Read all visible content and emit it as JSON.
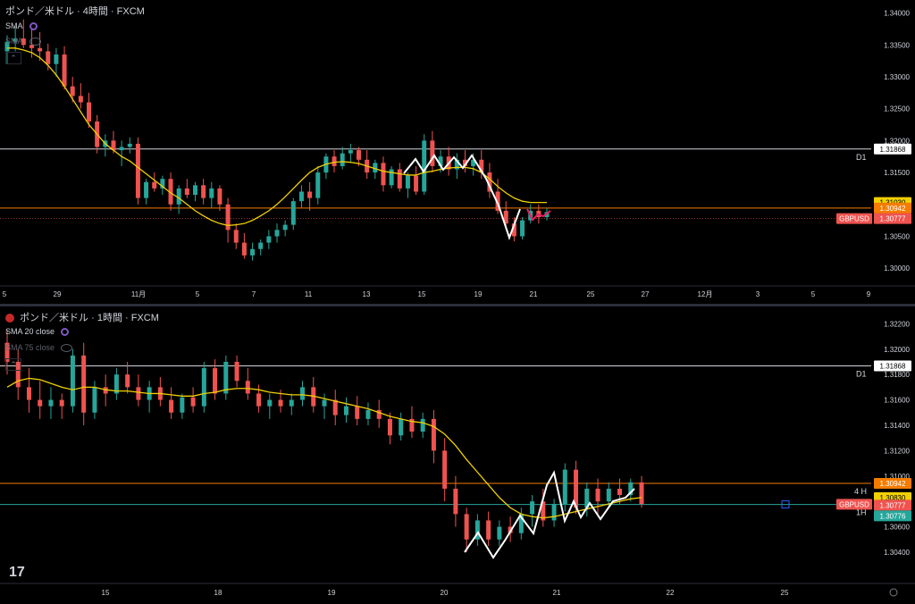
{
  "colors": {
    "up": "#26a69a",
    "down": "#ef5350",
    "sma": "#f0d000",
    "zigzag_white": "#ffffff",
    "zigzag_pink": "#e91e63",
    "level_line": "#d1d4dc",
    "orange_line": "#f57c00",
    "green_line": "#26a69a",
    "label_yellow": "#f0d000",
    "label_orange": "#f57c00",
    "label_red": "#ef5350",
    "label_green": "#26a69a"
  },
  "top": {
    "title": "ポンド／米ドル · 4時間 · FXCM",
    "sma_label": "SMA",
    "sma2_label": "SMA",
    "collapse_icon": "chevron-up-icon",
    "y_ticks": [
      "1.34000",
      "1.33500",
      "1.33000",
      "1.32500",
      "1.32000",
      "1.31500",
      "1.31000",
      "1.30500",
      "1.30000"
    ],
    "x_ticks": [
      "5",
      "29",
      "11月",
      "5",
      "7",
      "11",
      "13",
      "15",
      "19",
      "21",
      "25",
      "27",
      "12月",
      "3",
      "5",
      "9"
    ],
    "level_tag": "D1",
    "labels": {
      "level": "1.31868",
      "sma": "1.31030",
      "orange": "1.30942",
      "symbol": "GBPUSD",
      "price": "1.30777"
    }
  },
  "bottom": {
    "title": "ポンド／米ドル · 1時間 · FXCM",
    "sma_label": "SMA 20 close",
    "sma2_label": "SMA 75 close",
    "y_ticks": [
      "1.32200",
      "1.32000",
      "1.31800",
      "1.31600",
      "1.31400",
      "1.31200",
      "1.31000",
      "1.30800",
      "1.30600",
      "1.30400"
    ],
    "x_ticks": [
      "15",
      "18",
      "19",
      "20",
      "21",
      "22",
      "25"
    ],
    "level_tag": "D1",
    "h4_tag": "4 H",
    "h1_tag": "1H",
    "labels": {
      "level": "1.31868",
      "orange": "1.30942",
      "sma": "1.30830",
      "symbol": "GBPUSD",
      "price": "1.30777",
      "green": "1.30776"
    }
  },
  "logo": "17",
  "chart_data": [
    {
      "type": "candlestick",
      "title": "ポンド／米ドル · 4時間 · FXCM",
      "ylim": [
        1.2975,
        1.3412
      ],
      "x_tick_labels": [
        "5",
        "29",
        "11月",
        "5",
        "7",
        "11",
        "13",
        "15",
        "19",
        "21",
        "25",
        "27",
        "12月",
        "3",
        "5",
        "9"
      ],
      "candles": [
        [
          1.334,
          1.3365,
          1.332,
          1.3355
        ],
        [
          1.3355,
          1.338,
          1.334,
          1.336
        ],
        [
          1.336,
          1.339,
          1.3345,
          1.335
        ],
        [
          1.335,
          1.3375,
          1.333,
          1.3345
        ],
        [
          1.3345,
          1.337,
          1.3325,
          1.334
        ],
        [
          1.334,
          1.3352,
          1.331,
          1.332
        ],
        [
          1.332,
          1.3345,
          1.33,
          1.3335
        ],
        [
          1.3335,
          1.3348,
          1.328,
          1.3285
        ],
        [
          1.3285,
          1.33,
          1.326,
          1.327
        ],
        [
          1.327,
          1.329,
          1.325,
          1.326
        ],
        [
          1.326,
          1.3275,
          1.322,
          1.323
        ],
        [
          1.323,
          1.324,
          1.318,
          1.319
        ],
        [
          1.319,
          1.321,
          1.3175,
          1.32
        ],
        [
          1.32,
          1.3215,
          1.318,
          1.3185
        ],
        [
          1.3185,
          1.32,
          1.316,
          1.319
        ],
        [
          1.319,
          1.3205,
          1.318,
          1.3195
        ],
        [
          1.3195,
          1.3205,
          1.31,
          1.311
        ],
        [
          1.311,
          1.314,
          1.31,
          1.3135
        ],
        [
          1.3135,
          1.315,
          1.312,
          1.3125
        ],
        [
          1.3125,
          1.3145,
          1.3115,
          1.314
        ],
        [
          1.314,
          1.315,
          1.309,
          1.31
        ],
        [
          1.31,
          1.313,
          1.3085,
          1.3125
        ],
        [
          1.3125,
          1.314,
          1.311,
          1.3115
        ],
        [
          1.3115,
          1.3135,
          1.3105,
          1.313
        ],
        [
          1.313,
          1.314,
          1.31,
          1.311
        ],
        [
          1.311,
          1.3135,
          1.3095,
          1.3125
        ],
        [
          1.3125,
          1.313,
          1.309,
          1.31
        ],
        [
          1.31,
          1.311,
          1.304,
          1.306
        ],
        [
          1.306,
          1.307,
          1.303,
          1.304
        ],
        [
          1.304,
          1.3055,
          1.3015,
          1.302
        ],
        [
          1.302,
          1.304,
          1.3012,
          1.303
        ],
        [
          1.303,
          1.3045,
          1.302,
          1.304
        ],
        [
          1.304,
          1.306,
          1.303,
          1.305
        ],
        [
          1.305,
          1.307,
          1.304,
          1.306
        ],
        [
          1.306,
          1.3075,
          1.305,
          1.3068
        ],
        [
          1.3068,
          1.311,
          1.306,
          1.3105
        ],
        [
          1.3105,
          1.313,
          1.3095,
          1.312
        ],
        [
          1.312,
          1.3135,
          1.309,
          1.311
        ],
        [
          1.311,
          1.316,
          1.31,
          1.315
        ],
        [
          1.315,
          1.318,
          1.314,
          1.3175
        ],
        [
          1.3175,
          1.3185,
          1.315,
          1.316
        ],
        [
          1.316,
          1.319,
          1.3155,
          1.318
        ],
        [
          1.318,
          1.3195,
          1.3165,
          1.3185
        ],
        [
          1.3185,
          1.319,
          1.316,
          1.317
        ],
        [
          1.317,
          1.3185,
          1.314,
          1.315
        ],
        [
          1.315,
          1.317,
          1.314,
          1.3165
        ],
        [
          1.3165,
          1.3175,
          1.312,
          1.313
        ],
        [
          1.313,
          1.316,
          1.3125,
          1.3155
        ],
        [
          1.3155,
          1.3165,
          1.312,
          1.3125
        ],
        [
          1.3125,
          1.315,
          1.311,
          1.3145
        ],
        [
          1.3145,
          1.316,
          1.3115,
          1.312
        ],
        [
          1.312,
          1.321,
          1.3115,
          1.32
        ],
        [
          1.32,
          1.3215,
          1.315,
          1.316
        ],
        [
          1.316,
          1.3185,
          1.315,
          1.3175
        ],
        [
          1.3175,
          1.319,
          1.3145,
          1.3155
        ],
        [
          1.3155,
          1.318,
          1.314,
          1.317
        ],
        [
          1.317,
          1.3185,
          1.315,
          1.316
        ],
        [
          1.316,
          1.318,
          1.3145,
          1.317
        ],
        [
          1.317,
          1.3185,
          1.314,
          1.315
        ],
        [
          1.315,
          1.3165,
          1.311,
          1.312
        ],
        [
          1.312,
          1.314,
          1.3085,
          1.309
        ],
        [
          1.309,
          1.3105,
          1.306,
          1.307
        ],
        [
          1.307,
          1.308,
          1.3042,
          1.305
        ],
        [
          1.305,
          1.308,
          1.3045,
          1.3075
        ],
        [
          1.3075,
          1.31,
          1.307,
          1.309
        ],
        [
          1.309,
          1.31,
          1.307,
          1.308
        ],
        [
          1.308,
          1.3095,
          1.3075,
          1.3088
        ]
      ],
      "sma": [
        1.3345,
        1.3345,
        1.3342,
        1.3338,
        1.333,
        1.3318,
        1.3303,
        1.3285,
        1.3265,
        1.3245,
        1.3225,
        1.321,
        1.3195,
        1.3185,
        1.3175,
        1.3168,
        1.3158,
        1.3148,
        1.3138,
        1.3128,
        1.3118,
        1.311,
        1.31,
        1.309,
        1.3082,
        1.3075,
        1.307,
        1.3067,
        1.3068,
        1.307,
        1.3075,
        1.3082,
        1.309,
        1.31,
        1.3112,
        1.3125,
        1.3138,
        1.315,
        1.3158,
        1.3163,
        1.3166,
        1.3167,
        1.3166,
        1.3164,
        1.316,
        1.3156,
        1.3152,
        1.315,
        1.3148,
        1.3146,
        1.3146,
        1.315,
        1.3152,
        1.3155,
        1.3157,
        1.3158,
        1.3158,
        1.3156,
        1.315,
        1.314,
        1.3128,
        1.3118,
        1.311,
        1.3105,
        1.3103,
        1.3103,
        1.3103
      ]
    },
    {
      "type": "candlestick",
      "title": "ポンド／米ドル · 1時間 · FXCM",
      "ylim": [
        1.3028,
        1.3228
      ],
      "x_tick_labels": [
        "15",
        "18",
        "19",
        "20",
        "21",
        "22",
        "25"
      ],
      "candles": [
        [
          1.3205,
          1.3215,
          1.318,
          1.319
        ],
        [
          1.319,
          1.32,
          1.316,
          1.317
        ],
        [
          1.317,
          1.3185,
          1.315,
          1.316
        ],
        [
          1.316,
          1.3175,
          1.3145,
          1.3155
        ],
        [
          1.3155,
          1.317,
          1.3145,
          1.316
        ],
        [
          1.316,
          1.3165,
          1.3145,
          1.3155
        ],
        [
          1.3155,
          1.32,
          1.315,
          1.3195
        ],
        [
          1.3195,
          1.3205,
          1.314,
          1.315
        ],
        [
          1.315,
          1.3175,
          1.3145,
          1.317
        ],
        [
          1.317,
          1.318,
          1.3155,
          1.3165
        ],
        [
          1.3165,
          1.3185,
          1.316,
          1.318
        ],
        [
          1.318,
          1.319,
          1.3165,
          1.317
        ],
        [
          1.317,
          1.318,
          1.3155,
          1.316
        ],
        [
          1.316,
          1.3175,
          1.315,
          1.317
        ],
        [
          1.317,
          1.3178,
          1.3155,
          1.316
        ],
        [
          1.316,
          1.317,
          1.3145,
          1.315
        ],
        [
          1.315,
          1.3165,
          1.3145,
          1.3162
        ],
        [
          1.3162,
          1.317,
          1.315,
          1.3155
        ],
        [
          1.3155,
          1.319,
          1.315,
          1.3185
        ],
        [
          1.3185,
          1.3192,
          1.316,
          1.3165
        ],
        [
          1.3165,
          1.3195,
          1.316,
          1.319
        ],
        [
          1.319,
          1.3195,
          1.317,
          1.3175
        ],
        [
          1.3175,
          1.3185,
          1.316,
          1.3165
        ],
        [
          1.3165,
          1.3172,
          1.315,
          1.3155
        ],
        [
          1.3155,
          1.3165,
          1.3145,
          1.316
        ],
        [
          1.316,
          1.3168,
          1.315,
          1.3155
        ],
        [
          1.3155,
          1.3165,
          1.3148,
          1.316
        ],
        [
          1.316,
          1.3175,
          1.3155,
          1.317
        ],
        [
          1.317,
          1.3178,
          1.315,
          1.3155
        ],
        [
          1.3155,
          1.3165,
          1.3145,
          1.316
        ],
        [
          1.316,
          1.3168,
          1.314,
          1.3148
        ],
        [
          1.3148,
          1.3162,
          1.3142,
          1.3155
        ],
        [
          1.3155,
          1.3163,
          1.314,
          1.3145
        ],
        [
          1.3145,
          1.3158,
          1.314,
          1.3152
        ],
        [
          1.3152,
          1.316,
          1.3138,
          1.3145
        ],
        [
          1.3145,
          1.315,
          1.3125,
          1.3132
        ],
        [
          1.3132,
          1.315,
          1.3128,
          1.3145
        ],
        [
          1.3145,
          1.3155,
          1.313,
          1.3135
        ],
        [
          1.3135,
          1.315,
          1.313,
          1.3145
        ],
        [
          1.3145,
          1.3152,
          1.311,
          1.312
        ],
        [
          1.312,
          1.313,
          1.308,
          1.309
        ],
        [
          1.309,
          1.31,
          1.306,
          1.307
        ],
        [
          1.307,
          1.3075,
          1.304,
          1.305
        ],
        [
          1.305,
          1.307,
          1.3045,
          1.3065
        ],
        [
          1.3065,
          1.3072,
          1.3045,
          1.305
        ],
        [
          1.305,
          1.3065,
          1.3045,
          1.306
        ],
        [
          1.306,
          1.3068,
          1.3048,
          1.3055
        ],
        [
          1.3055,
          1.3075,
          1.305,
          1.307
        ],
        [
          1.307,
          1.3085,
          1.306,
          1.308
        ],
        [
          1.308,
          1.309,
          1.306,
          1.3065
        ],
        [
          1.3065,
          1.3082,
          1.306,
          1.3078
        ],
        [
          1.3078,
          1.311,
          1.3072,
          1.3105
        ],
        [
          1.3105,
          1.3112,
          1.307,
          1.3075
        ],
        [
          1.3075,
          1.3095,
          1.3068,
          1.309
        ],
        [
          1.309,
          1.3098,
          1.307,
          1.308
        ],
        [
          1.308,
          1.3095,
          1.3075,
          1.309
        ],
        [
          1.309,
          1.3098,
          1.3078,
          1.3085
        ],
        [
          1.3085,
          1.3098,
          1.308,
          1.3095
        ],
        [
          1.3095,
          1.31,
          1.3075,
          1.3078
        ]
      ],
      "sma20": [
        1.317,
        1.3175,
        1.3177,
        1.3176,
        1.3173,
        1.317,
        1.3168,
        1.317,
        1.317,
        1.3168,
        1.3167,
        1.3167,
        1.3166,
        1.3165,
        1.3165,
        1.3164,
        1.3163,
        1.3163,
        1.3165,
        1.3166,
        1.3168,
        1.3169,
        1.3169,
        1.3168,
        1.3166,
        1.3165,
        1.3164,
        1.3164,
        1.3163,
        1.3161,
        1.3159,
        1.3157,
        1.3155,
        1.3153,
        1.315,
        1.3147,
        1.3145,
        1.3143,
        1.3142,
        1.3139,
        1.3133,
        1.3124,
        1.3113,
        1.3103,
        1.3093,
        1.3083,
        1.3075,
        1.307,
        1.3068,
        1.3067,
        1.3068,
        1.307,
        1.3072,
        1.3074,
        1.3076,
        1.3078,
        1.308,
        1.3082,
        1.3083
      ]
    }
  ]
}
